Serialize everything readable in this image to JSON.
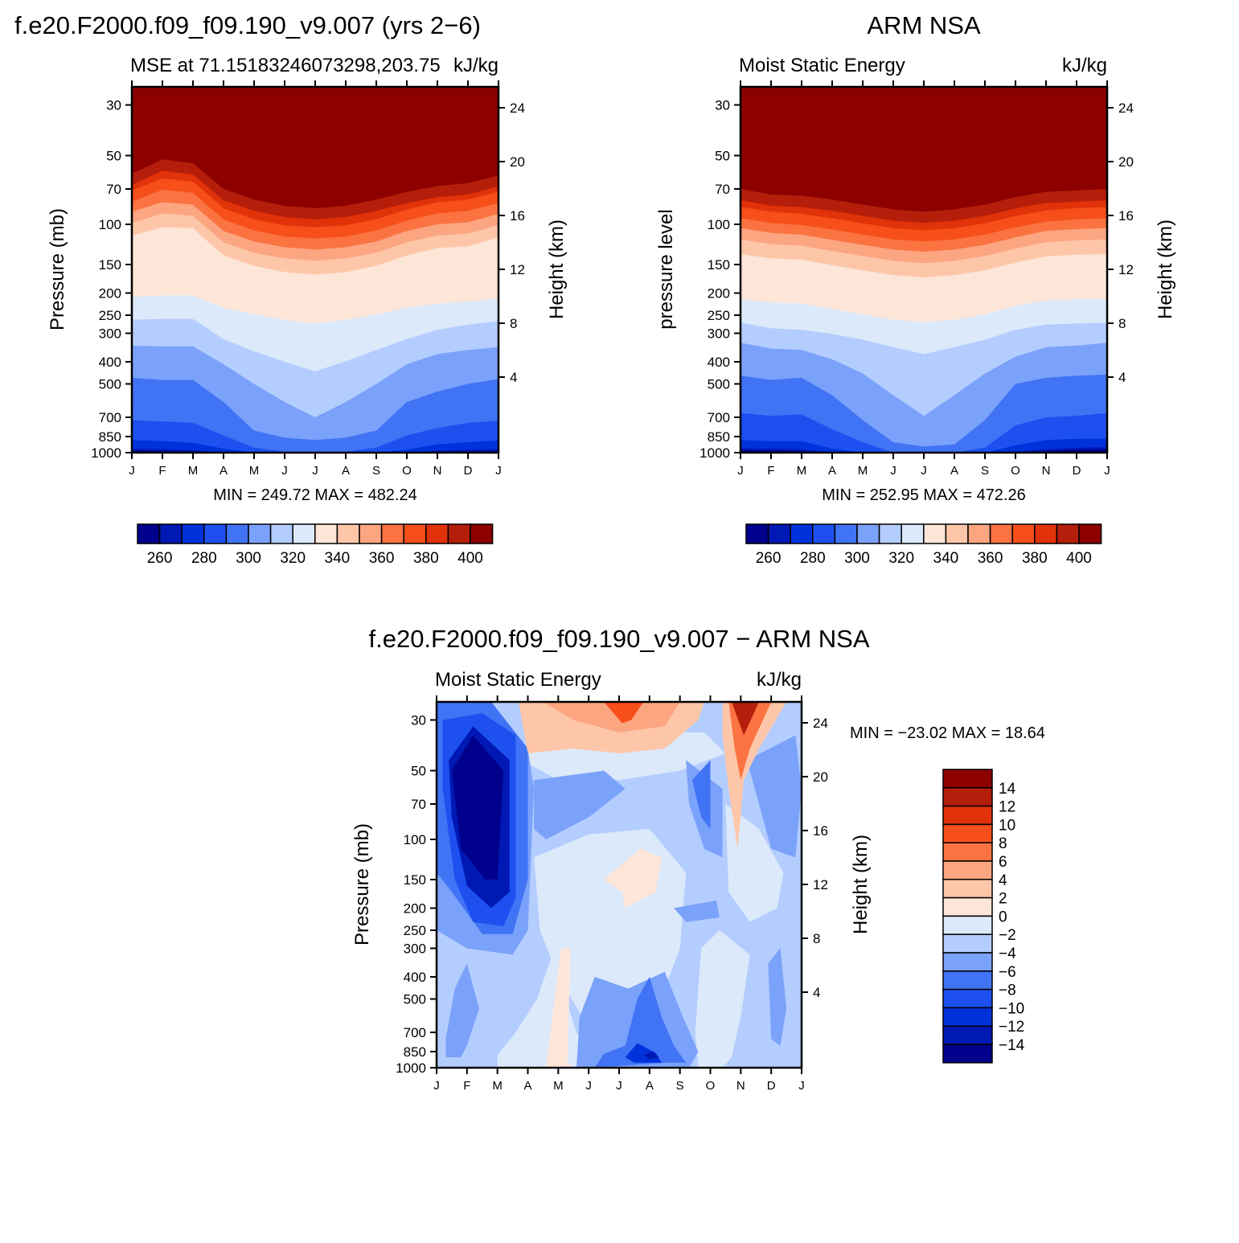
{
  "chart_data": [
    {
      "type": "contour",
      "id": "model",
      "figure_title": "f.e20.F2000.f09_f09.190_v9.007 (yrs 2−6)",
      "left_title": "MSE at 71.15183246073298,203.75",
      "right_title": "kJ/kg",
      "ylabel": "Pressure (mb)",
      "ylabel_right": "Height (km)",
      "months": [
        "J",
        "F",
        "M",
        "A",
        "M",
        "J",
        "J",
        "A",
        "S",
        "O",
        "N",
        "D",
        "J"
      ],
      "pressure_ticks": [
        "30",
        "50",
        "70",
        "100",
        "150",
        "200",
        "250",
        "300",
        "400",
        "500",
        "700",
        "850",
        "1000"
      ],
      "height_ticks": [
        "24",
        "20",
        "16",
        "12",
        "8",
        "4"
      ],
      "minmax": "MIN = 249.72  MAX = 482.24",
      "levels": [
        260,
        270,
        280,
        290,
        300,
        310,
        320,
        330,
        340,
        350,
        360,
        370,
        380,
        390,
        400
      ],
      "colorbar_labels": [
        "260",
        "280",
        "300",
        "320",
        "340",
        "360",
        "380",
        "400"
      ],
      "contour_pressure_by_month": {
        "400": [
          60,
          52,
          54,
          70,
          78,
          83,
          85,
          83,
          78,
          72,
          68,
          66,
          61
        ],
        "380": [
          71,
          63,
          65,
          85,
          95,
          101,
          103,
          101,
          95,
          86,
          80,
          78,
          72
        ],
        "360": [
          88,
          80,
          82,
          107,
          119,
          126,
          129,
          126,
          119,
          107,
          100,
          98,
          90
        ],
        "340": [
          112,
          103,
          104,
          137,
          152,
          162,
          166,
          162,
          152,
          137,
          127,
          125,
          114
        ],
        "330": [
          155,
          148,
          149,
          176,
          193,
          207,
          214,
          207,
          193,
          176,
          165,
          161,
          157
        ],
        "320": [
          208,
          205,
          205,
          232,
          248,
          262,
          272,
          262,
          248,
          232,
          222,
          218,
          210
        ],
        "310": [
          262,
          260,
          260,
          318,
          360,
          400,
          440,
          398,
          355,
          318,
          290,
          275,
          265
        ],
        "300": [
          340,
          342,
          342,
          410,
          500,
          600,
          700,
          600,
          500,
          410,
          370,
          355,
          345
        ],
        "290": [
          470,
          480,
          480,
          600,
          800,
          860,
          880,
          860,
          800,
          600,
          540,
          500,
          475
        ],
        "280": [
          720,
          730,
          740,
          840,
          950,
          990,
          1000,
          990,
          950,
          840,
          780,
          740,
          725
        ],
        "270": [
          880,
          890,
          905,
          960,
          1000,
          1000,
          1000,
          1000,
          1000,
          970,
          920,
          900,
          885
        ],
        "260": [
          960,
          965,
          975,
          1000,
          1000,
          1000,
          1000,
          1000,
          1000,
          1000,
          980,
          970,
          965
        ]
      }
    },
    {
      "type": "contour",
      "id": "obs",
      "figure_title": "ARM NSA",
      "left_title": "Moist Static Energy",
      "right_title": "kJ/kg",
      "ylabel": "pressure level",
      "ylabel_right": "Height (km)",
      "months": [
        "J",
        "F",
        "M",
        "A",
        "M",
        "J",
        "J",
        "A",
        "S",
        "O",
        "N",
        "D",
        "J"
      ],
      "pressure_ticks": [
        "30",
        "50",
        "70",
        "100",
        "150",
        "200",
        "250",
        "300",
        "400",
        "500",
        "700",
        "850",
        "1000"
      ],
      "height_ticks": [
        "24",
        "20",
        "16",
        "12",
        "8",
        "4"
      ],
      "minmax": "MIN = 252.95  MAX = 472.26",
      "levels": [
        260,
        270,
        280,
        290,
        300,
        310,
        320,
        330,
        340,
        350,
        360,
        370,
        380,
        390,
        400
      ],
      "colorbar_labels": [
        "260",
        "280",
        "300",
        "320",
        "340",
        "360",
        "380",
        "400"
      ],
      "contour_pressure_by_month": {
        "400": [
          70,
          74,
          75,
          78,
          82,
          86,
          88,
          86,
          82,
          76,
          72,
          71,
          70
        ],
        "380": [
          84,
          88,
          90,
          94,
          99,
          104,
          106,
          104,
          99,
          92,
          87,
          85,
          84
        ],
        "360": [
          104,
          109,
          111,
          117,
          123,
          129,
          132,
          129,
          123,
          114,
          107,
          105,
          104
        ],
        "340": [
          135,
          141,
          143,
          151,
          159,
          167,
          171,
          167,
          159,
          147,
          138,
          136,
          135
        ],
        "330": [
          172,
          178,
          180,
          190,
          200,
          210,
          215,
          210,
          200,
          186,
          175,
          173,
          172
        ],
        "320": [
          212,
          220,
          222,
          235,
          248,
          262,
          268,
          262,
          248,
          228,
          215,
          213,
          212
        ],
        "310": [
          270,
          285,
          290,
          302,
          320,
          345,
          370,
          345,
          320,
          290,
          275,
          272,
          270
        ],
        "300": [
          330,
          350,
          355,
          390,
          450,
          560,
          690,
          560,
          450,
          380,
          345,
          340,
          330
        ],
        "290": [
          460,
          480,
          470,
          560,
          720,
          900,
          940,
          920,
          720,
          500,
          470,
          460,
          455
        ],
        "280": [
          670,
          690,
          680,
          790,
          900,
          1000,
          1000,
          1000,
          950,
          760,
          700,
          690,
          670
        ],
        "270": [
          880,
          890,
          890,
          960,
          1000,
          1000,
          1000,
          1000,
          1000,
          930,
          880,
          870,
          870
        ],
        "260": [
          955,
          960,
          965,
          1000,
          1000,
          1000,
          1000,
          1000,
          1000,
          990,
          965,
          950,
          945
        ]
      }
    },
    {
      "type": "contour",
      "id": "diff",
      "figure_title": "f.e20.F2000.f09_f09.190_v9.007 − ARM NSA",
      "left_title": "Moist Static Energy",
      "right_title": "kJ/kg",
      "ylabel": "Pressure (mb)",
      "ylabel_right": "Height (km)",
      "months": [
        "J",
        "F",
        "M",
        "A",
        "M",
        "J",
        "J",
        "A",
        "S",
        "O",
        "N",
        "D",
        "J"
      ],
      "pressure_ticks": [
        "30",
        "50",
        "70",
        "100",
        "150",
        "200",
        "250",
        "300",
        "400",
        "500",
        "700",
        "850",
        "1000"
      ],
      "height_ticks": [
        "24",
        "20",
        "16",
        "12",
        "8",
        "4"
      ],
      "minmax": "MIN = −23.02  MAX =   18.64",
      "levels": [
        -14,
        -12,
        -10,
        -8,
        -6,
        -4,
        -2,
        0,
        2,
        4,
        6,
        8,
        10,
        12,
        14
      ],
      "colorbar_labels": [
        "14",
        "12",
        "10",
        "8",
        "6",
        "4",
        "2",
        "0",
        "−2",
        "−4",
        "−6",
        "−8",
        "−10",
        "−12",
        "−14"
      ]
    }
  ]
}
